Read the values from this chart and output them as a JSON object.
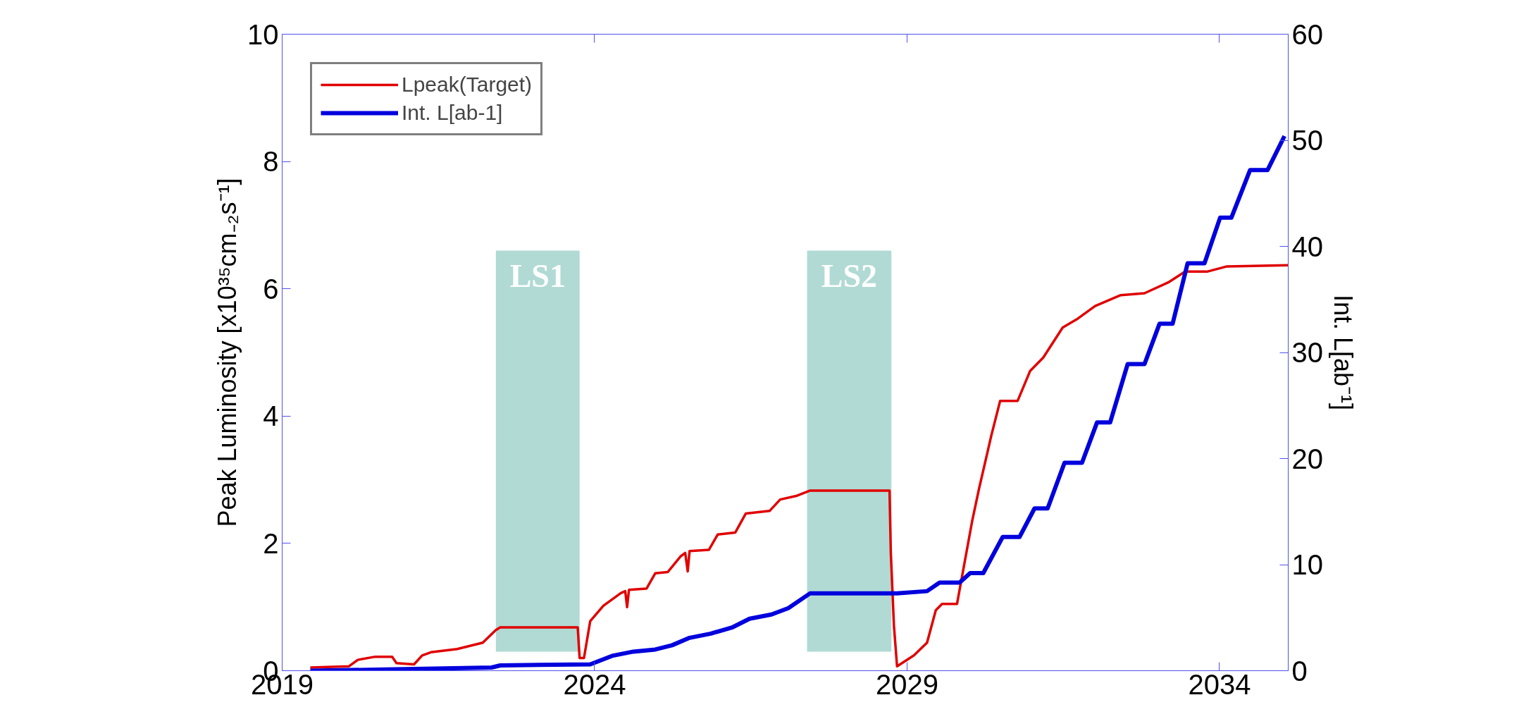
{
  "chart_data": {
    "type": "line",
    "xlabel": null,
    "ylabel": "Peak Luminosity [x10³⁵cm₋₂s⁻¹]",
    "y2label": "Int. L[ab⁻¹]",
    "xlim": [
      2019,
      2035.1
    ],
    "xticks": [
      2019,
      2024,
      2029,
      2034
    ],
    "ylim": [
      0,
      10
    ],
    "yticks": [
      0,
      2,
      4,
      6,
      8,
      10
    ],
    "y2lim": [
      0,
      60
    ],
    "y2ticks": [
      0,
      10,
      20,
      30,
      40,
      50,
      60
    ],
    "grid": false,
    "legend": "top left",
    "marker": "none",
    "line_style": "solid",
    "bands": [
      {
        "axis": "x",
        "from": 2022.42,
        "to": 2023.76,
        "label": "LS1",
        "color": "#a3d3cc"
      },
      {
        "axis": "x",
        "from": 2027.4,
        "to": 2028.75,
        "label": "LS2",
        "color": "#a3d3cc"
      }
    ],
    "series": [
      {
        "name": "Lpeak(Target)",
        "color": "#e00000",
        "x": [
          2019.45,
          2020.07,
          2020.21,
          2020.49,
          2020.76,
          2020.83,
          2021.11,
          2021.24,
          2021.38,
          2021.8,
          2022.21,
          2022.42,
          2022.49,
          2023.73,
          2023.76,
          2023.83,
          2023.93,
          2024.14,
          2024.42,
          2024.49,
          2024.52,
          2024.55,
          2024.83,
          2024.97,
          2025.17,
          2025.38,
          2025.45,
          2025.49,
          2025.52,
          2025.83,
          2025.97,
          2026.25,
          2026.42,
          2026.8,
          2026.97,
          2027.24,
          2027.45,
          2028.72,
          2028.74,
          2028.79,
          2028.84,
          2029.11,
          2029.32,
          2029.46,
          2029.56,
          2029.8,
          2030.04,
          2030.15,
          2030.35,
          2030.49,
          2030.77,
          2030.97,
          2031.18,
          2031.49,
          2031.73,
          2032.01,
          2032.42,
          2032.8,
          2033.18,
          2033.45,
          2033.8,
          2034.11,
          2035.1
        ],
        "values": [
          0.05,
          0.07,
          0.17,
          0.22,
          0.22,
          0.12,
          0.1,
          0.24,
          0.29,
          0.34,
          0.44,
          0.64,
          0.68,
          0.68,
          0.2,
          0.2,
          0.78,
          1.02,
          1.22,
          1.25,
          1.0,
          1.27,
          1.29,
          1.53,
          1.55,
          1.8,
          1.85,
          1.56,
          1.88,
          1.9,
          2.14,
          2.17,
          2.47,
          2.51,
          2.69,
          2.75,
          2.83,
          2.83,
          1.86,
          0.71,
          0.07,
          0.24,
          0.44,
          0.95,
          1.05,
          1.05,
          2.34,
          2.85,
          3.7,
          4.24,
          4.24,
          4.71,
          4.92,
          5.39,
          5.53,
          5.73,
          5.9,
          5.93,
          6.1,
          6.27,
          6.27,
          6.35,
          6.37
        ]
      },
      {
        "name": "Int. L[ab-1]",
        "color": "#0000dd",
        "axis": "y2",
        "x": [
          2019.45,
          2020.49,
          2022.35,
          2022.49,
          2023.93,
          2024.28,
          2024.62,
          2024.97,
          2025.24,
          2025.52,
          2025.86,
          2026.21,
          2026.48,
          2026.83,
          2027.1,
          2027.45,
          2028.84,
          2029.32,
          2029.52,
          2029.84,
          2030.01,
          2030.22,
          2030.53,
          2030.8,
          2031.04,
          2031.25,
          2031.52,
          2031.8,
          2032.04,
          2032.25,
          2032.53,
          2032.8,
          2033.04,
          2033.25,
          2033.49,
          2033.76,
          2034.01,
          2034.19,
          2034.49,
          2034.77,
          2035.04
        ],
        "values": [
          0,
          0.1,
          0.3,
          0.5,
          0.6,
          1.4,
          1.8,
          2.0,
          2.4,
          3.1,
          3.5,
          4.1,
          4.9,
          5.3,
          5.9,
          7.3,
          7.3,
          7.5,
          8.3,
          8.3,
          9.2,
          9.2,
          12.6,
          12.6,
          15.3,
          15.3,
          19.6,
          19.6,
          23.4,
          23.4,
          28.9,
          28.9,
          32.7,
          32.7,
          38.4,
          38.4,
          42.7,
          42.7,
          47.2,
          47.2,
          50.4
        ]
      }
    ]
  }
}
